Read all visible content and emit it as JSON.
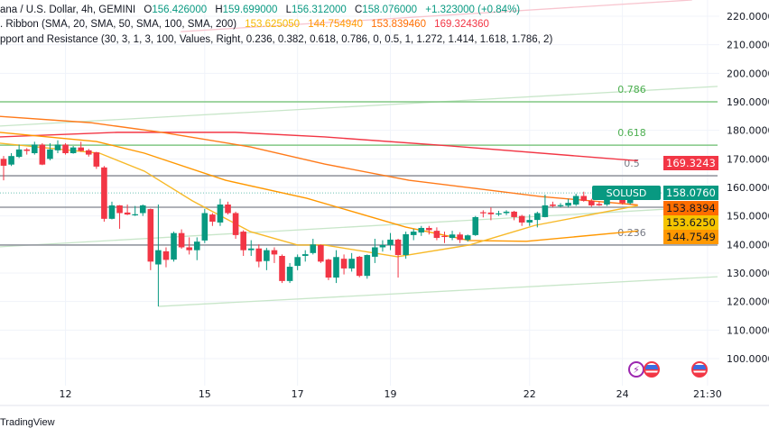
{
  "legend": {
    "symbol": "ana / U.S. Dollar, 4h, GEMINI",
    "open_label": "O",
    "open": "156.426000",
    "high_label": "H",
    "high": "159.699000",
    "low_label": "L",
    "low": "156.312000",
    "close_label": "C",
    "close": "158.076000",
    "change": "+1.323000 (+0.84%)",
    "ribbon_title": ". Ribbon (SMA, 20, SMA, 50, SMA, 100, SMA, 200)",
    "ribbon_values": [
      "153.625050",
      "144.754940",
      "153.839460",
      "169.324360"
    ],
    "sr_title": "pport and Resistance (30, 3, 1, 3, 100, Values, Right, 0.236, 0.382, 0.618, 0.786, 0, 0.5, 1, 1.272, 1.414, 1.618, 1.786, 2)"
  },
  "colors": {
    "up": "#089981",
    "down": "#f23645",
    "sma20": "#f7b928",
    "sma50": "#ff9800",
    "sma100": "#ff6d00",
    "sma200": "#f23645",
    "level_green": "#81c784",
    "level_grey": "#9598a1",
    "channel": "#c8e6c9",
    "upper_line": "#f8bbd0"
  },
  "branding": "TradingView",
  "events": [
    {
      "icon": "lightning-icon"
    },
    {
      "icon": "us-flag-icon"
    },
    {
      "icon": "us-flag-icon"
    }
  ],
  "chart_data": {
    "type": "candlestick",
    "symbol_label": "SOLUSD",
    "ylim": [
      95,
      225
    ],
    "y_ticks": [
      "220.0000",
      "210.0000",
      "200.0000",
      "190.0000",
      "180.0000",
      "170.0000",
      "160.0000",
      "150.0000",
      "140.0000",
      "130.0000",
      "120.0000",
      "110.0000",
      "100.0000"
    ],
    "y_tick_values": [
      220,
      210,
      200,
      190,
      180,
      170,
      160,
      150,
      140,
      130,
      120,
      110,
      100
    ],
    "x_ticks": [
      {
        "label": "12",
        "bar": 8
      },
      {
        "label": "15",
        "bar": 26
      },
      {
        "label": "17",
        "bar": 38
      },
      {
        "label": "19",
        "bar": 50
      },
      {
        "label": "22",
        "bar": 68
      },
      {
        "label": "24",
        "bar": 80
      },
      {
        "label": "21:30",
        "bar": 91
      }
    ],
    "ohlc": [
      [
        170,
        171,
        162.5,
        167.6
      ],
      [
        168,
        172,
        167.5,
        171
      ],
      [
        170.7,
        175,
        170.3,
        173.3
      ],
      [
        173.3,
        173.8,
        171.5,
        172.8
      ],
      [
        172,
        176,
        171.5,
        175
      ],
      [
        175,
        175.5,
        167.8,
        168
      ],
      [
        170,
        175.5,
        169.5,
        173.3
      ],
      [
        173,
        176.5,
        172,
        175
      ],
      [
        175,
        175.5,
        171.5,
        172
      ],
      [
        172,
        174.5,
        171.8,
        174
      ],
      [
        174,
        176,
        172.5,
        172.8
      ],
      [
        173,
        173.5,
        170.8,
        171.5
      ],
      [
        172.3,
        172.5,
        166.5,
        167.3
      ],
      [
        167,
        167.5,
        148,
        149
      ],
      [
        149,
        155,
        148.8,
        153.7
      ],
      [
        153.7,
        153.8,
        145.5,
        151
      ],
      [
        151.2,
        154,
        150.3,
        150.5
      ],
      [
        150.6,
        153.5,
        150,
        150.6
      ],
      [
        151,
        154,
        150,
        153.7
      ],
      [
        152.4,
        152.6,
        131,
        134
      ],
      [
        133,
        154,
        118.3,
        138
      ],
      [
        137.6,
        139,
        132,
        134.6
      ],
      [
        134.7,
        144.5,
        134,
        144
      ],
      [
        144,
        145.3,
        138.5,
        139
      ],
      [
        139,
        142.5,
        136.5,
        138
      ],
      [
        138,
        142.5,
        134.5,
        141
      ],
      [
        141.4,
        152.5,
        140.5,
        151
      ],
      [
        150.5,
        151,
        146.5,
        148
      ],
      [
        147.7,
        156,
        146.5,
        154
      ],
      [
        154,
        155,
        150.5,
        151
      ],
      [
        151,
        151.5,
        142,
        143.3
      ],
      [
        144.5,
        145,
        136,
        138
      ],
      [
        138,
        141.5,
        136,
        138.6
      ],
      [
        138.6,
        140,
        132,
        134
      ],
      [
        134.2,
        138.8,
        131,
        138
      ],
      [
        138,
        139,
        133.5,
        136.5
      ],
      [
        136,
        136.5,
        126.5,
        127.2
      ],
      [
        127.2,
        133.5,
        126.5,
        132.2
      ],
      [
        132.5,
        136.5,
        131,
        135.6
      ],
      [
        136,
        138,
        134,
        136.6
      ],
      [
        137,
        142,
        136.5,
        140
      ],
      [
        139.8,
        140,
        133.5,
        134
      ],
      [
        134.7,
        135,
        127.5,
        128.4
      ],
      [
        128.4,
        138,
        126.5,
        135.6
      ],
      [
        135,
        136.5,
        129.5,
        131.6
      ],
      [
        131.6,
        137,
        130.5,
        135
      ],
      [
        135.7,
        136,
        128.5,
        129
      ],
      [
        129,
        136.5,
        128,
        136.3
      ],
      [
        135.7,
        142,
        133.5,
        139
      ],
      [
        139,
        141.5,
        137.5,
        139.8
      ],
      [
        139.8,
        144,
        138,
        141.7
      ],
      [
        141.7,
        142,
        128.4,
        136.3
      ],
      [
        136.3,
        144.5,
        135,
        143.6
      ],
      [
        143.3,
        145.5,
        141.5,
        144.5
      ],
      [
        144.2,
        146.5,
        143,
        145.8
      ],
      [
        145.8,
        146.5,
        143.5,
        145
      ],
      [
        144.8,
        146,
        141.5,
        142.3
      ],
      [
        143,
        144.5,
        140.5,
        142.8
      ],
      [
        142.3,
        144.8,
        141.5,
        143.5
      ],
      [
        143.5,
        144.3,
        140.5,
        141.6
      ],
      [
        141.6,
        143.5,
        141,
        143.2
      ],
      [
        143.3,
        150,
        143,
        149.6
      ],
      [
        151.3,
        152,
        149.5,
        151
      ],
      [
        151.2,
        153,
        148.5,
        150.6
      ],
      [
        150.6,
        151.8,
        150,
        150.9
      ],
      [
        151,
        152,
        150.3,
        151.5
      ],
      [
        151.5,
        151.8,
        148.5,
        149.6
      ],
      [
        150,
        150.4,
        146.5,
        147.7
      ],
      [
        147.7,
        150.5,
        146.5,
        148.6
      ],
      [
        148.6,
        151.5,
        146,
        151
      ],
      [
        149.6,
        157.5,
        149.5,
        153.7
      ],
      [
        154,
        155,
        153,
        153.5
      ],
      [
        153.4,
        154.5,
        153,
        153.8
      ],
      [
        153.6,
        156,
        153,
        154.6
      ],
      [
        154,
        157.8,
        153.5,
        157
      ],
      [
        157,
        158.5,
        155,
        155.3
      ],
      [
        155.3,
        156,
        153.2,
        153.7
      ],
      [
        154.2,
        155,
        153.5,
        153.7
      ],
      [
        154,
        159.5,
        153.5,
        157.5
      ],
      [
        157.7,
        159.7,
        157,
        157.2
      ],
      [
        157.5,
        158,
        154,
        154.5
      ],
      [
        154.5,
        157.8,
        154,
        156
      ],
      [
        156.426,
        159.699,
        156.312,
        158.076
      ]
    ],
    "moving_averages": [
      {
        "name": "SMA 200",
        "color": "#f23645",
        "points": [
          [
            -0.5,
            177.7
          ],
          [
            14.7,
            179.3
          ],
          [
            29.9,
            179.3
          ],
          [
            41.5,
            177.7
          ],
          [
            57.9,
            174.5
          ],
          [
            82,
            169.32
          ]
        ]
      },
      {
        "name": "SMA 100",
        "color": "#ff7a1a",
        "points": [
          [
            -0.5,
            184.9
          ],
          [
            11.2,
            182.7
          ],
          [
            20.5,
            179.3
          ],
          [
            31.9,
            174.2
          ],
          [
            41.5,
            168.2
          ],
          [
            52.4,
            162.5
          ],
          [
            69.5,
            156.8
          ],
          [
            82,
            153.84
          ]
        ]
      },
      {
        "name": "SMA 50",
        "color": "#ff9800",
        "points": [
          [
            -0.5,
            179.3
          ],
          [
            12,
            176.1
          ],
          [
            18.2,
            172
          ],
          [
            28.7,
            162.5
          ],
          [
            39.2,
            156.2
          ],
          [
            52,
            146.1
          ],
          [
            60.2,
            141.4
          ],
          [
            67.6,
            141.1
          ],
          [
            82,
            144.75
          ]
        ]
      },
      {
        "name": "SMA 20",
        "color": "#f7b928",
        "points": [
          [
            -0.5,
            175.5
          ],
          [
            12.4,
            172
          ],
          [
            18.2,
            165.7
          ],
          [
            24.4,
            155.3
          ],
          [
            31.9,
            144.5
          ],
          [
            38,
            139.8
          ],
          [
            41.5,
            139.8
          ],
          [
            50.9,
            135.7
          ],
          [
            60.2,
            139.8
          ],
          [
            68.7,
            146.7
          ],
          [
            82,
            153.63
          ]
        ]
      }
    ],
    "levels": [
      {
        "label": "0.786",
        "price": 190,
        "color": "#81c784"
      },
      {
        "label": "0.618",
        "price": 174.8,
        "color": "#81c784"
      },
      {
        "label": "0.5",
        "price": 164.1,
        "color": "#9598a1"
      },
      {
        "label": "",
        "price": 153.05,
        "color": "#9598a1"
      },
      {
        "label": "0.236",
        "price": 139.8,
        "color": "#9598a1"
      }
    ],
    "channels": [
      {
        "from": [
          -0.5,
          181.5
        ],
        "to": [
          92.3,
          195.4
        ],
        "color": "#c8e6c9"
      },
      {
        "from": [
          -0.5,
          139.2
        ],
        "to": [
          92.3,
          153.4
        ],
        "color": "#c8e6c9"
      },
      {
        "from": [
          20,
          118.3
        ],
        "to": [
          92.3,
          128.7
        ],
        "color": "#c8e6c9"
      },
      {
        "from": [
          22.9,
          214.6
        ],
        "to": [
          89,
          225.7
        ],
        "color": "#f8c5cf"
      }
    ],
    "price_badges": [
      {
        "value": "169.3243",
        "color": "#f23645",
        "text": "#fff"
      },
      {
        "value": "158.0760",
        "color": "#089981",
        "text": "#fff",
        "price": 158.076
      },
      {
        "value": "153.8394",
        "color": "#ff6d00",
        "text": "#131722"
      },
      {
        "value": "153.6250",
        "color": "#f5c400",
        "text": "#131722"
      },
      {
        "value": "144.7549",
        "color": "#ff9800",
        "text": "#131722"
      }
    ]
  }
}
